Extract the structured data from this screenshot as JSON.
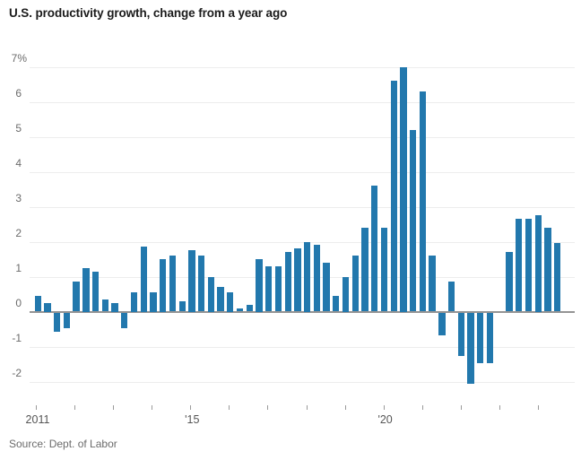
{
  "title": "U.S. productivity growth, change from a year ago",
  "source": "Source: Dept. of Labor",
  "colors": {
    "bar": "#2278ad",
    "zero_line": "#949494",
    "gridline": "#ededed",
    "title_text": "#1b1b1b",
    "axis_text": "#6b6b6b",
    "tick_mark": "#9a9a9a"
  },
  "chart_data": {
    "type": "bar",
    "title": "U.S. productivity growth, change from a year ago",
    "xlabel": "",
    "ylabel": "change from a year ago (%)",
    "unit": "%",
    "ylim": [
      -2.5,
      7.3
    ],
    "grid": "horizontal",
    "legend": "none",
    "y_ticks": [
      {
        "value": 7,
        "label": "7%"
      },
      {
        "value": 6,
        "label": "6"
      },
      {
        "value": 5,
        "label": "5"
      },
      {
        "value": 4,
        "label": "4"
      },
      {
        "value": 3,
        "label": "3"
      },
      {
        "value": 2,
        "label": "2"
      },
      {
        "value": 1,
        "label": "1"
      },
      {
        "value": 0,
        "label": "0"
      },
      {
        "value": -1,
        "label": "-1"
      },
      {
        "value": -2,
        "label": "-2"
      }
    ],
    "x_tick_years": [
      2011,
      2012,
      2013,
      2014,
      2015,
      2016,
      2017,
      2018,
      2019,
      2020,
      2021,
      2022,
      2023,
      2024
    ],
    "x_tick_labels": [
      {
        "year": 2011,
        "label": "2011"
      },
      {
        "year": 2015,
        "label": "'15"
      },
      {
        "year": 2020,
        "label": "'20"
      }
    ],
    "series": [
      {
        "name": "U.S. productivity growth, % change from a year ago (quarterly)",
        "quarters": [
          "2011 Q1",
          "2011 Q2",
          "2011 Q3",
          "2011 Q4",
          "2012 Q1",
          "2012 Q2",
          "2012 Q3",
          "2012 Q4",
          "2013 Q1",
          "2013 Q2",
          "2013 Q3",
          "2013 Q4",
          "2014 Q1",
          "2014 Q2",
          "2014 Q3",
          "2014 Q4",
          "2015 Q1",
          "2015 Q2",
          "2015 Q3",
          "2015 Q4",
          "2016 Q1",
          "2016 Q2",
          "2016 Q3",
          "2016 Q4",
          "2017 Q1",
          "2017 Q2",
          "2017 Q3",
          "2017 Q4",
          "2018 Q1",
          "2018 Q2",
          "2018 Q3",
          "2018 Q4",
          "2019 Q1",
          "2019 Q2",
          "2019 Q3",
          "2019 Q4",
          "2020 Q1",
          "2020 Q2",
          "2020 Q3",
          "2020 Q4",
          "2021 Q1",
          "2021 Q2",
          "2021 Q3",
          "2021 Q4",
          "2022 Q1",
          "2022 Q2",
          "2022 Q3",
          "2022 Q4",
          "2023 Q1",
          "2023 Q2",
          "2023 Q3",
          "2023 Q4",
          "2024 Q1",
          "2024 Q2",
          "2024 Q3"
        ],
        "values": [
          0.45,
          0.25,
          -0.55,
          -0.45,
          0.85,
          1.25,
          1.15,
          0.35,
          0.25,
          -0.45,
          0.55,
          1.85,
          0.55,
          1.5,
          1.6,
          0.3,
          1.75,
          1.6,
          1.0,
          0.7,
          0.55,
          0.1,
          0.2,
          1.5,
          1.3,
          1.3,
          1.7,
          1.8,
          2.0,
          1.9,
          1.4,
          0.45,
          1.0,
          1.6,
          2.4,
          3.6,
          2.4,
          6.6,
          7.0,
          5.2,
          6.3,
          1.6,
          -0.65,
          0.85,
          -1.25,
          -2.05,
          -1.45,
          -1.45,
          0.0,
          1.7,
          2.65,
          2.65,
          2.75,
          2.4,
          1.95
        ]
      }
    ]
  }
}
